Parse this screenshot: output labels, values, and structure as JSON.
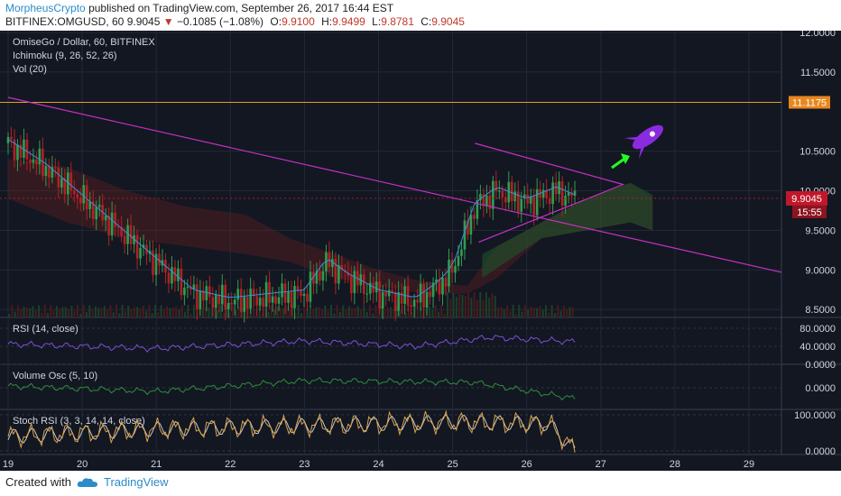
{
  "header": {
    "author": "MorpheusCrypto",
    "published": "published on TradingView.com, September 26, 2017 16:44 EST",
    "symbol": "BITFINEX:OMGUSD, 60",
    "last": "9.9045",
    "change_arrow": "▼",
    "change": "−0.1085 (−1.08%)",
    "open_label": "O:",
    "open": "9.9100",
    "high_label": "H:",
    "high": "9.9499",
    "low_label": "L:",
    "low": "9.8781",
    "close_label": "C:",
    "close": "9.9045"
  },
  "footer": {
    "created_with": "Created with",
    "brand": "TradingView",
    "logo_icon": "cloud-logo-icon"
  },
  "colors": {
    "background": "#131722",
    "grid": "#232836",
    "text": "#d1d4dc",
    "up": "#2e9f4e",
    "down": "#b32025",
    "trendline": "#c531c5",
    "level": "#e0a020",
    "rocket": "#8b2be0",
    "arrow": "#22ff22",
    "rsi": "#7b4fd6",
    "volosc": "#2f8f3a",
    "stoch_k": "#d9a34a",
    "stoch_d": "#c9c9c9"
  },
  "chart_data": [
    {
      "type": "candlestick",
      "title": "OmiseGo / Dollar, 60, BITFINEX",
      "indicators": [
        "Ichimoku (9, 26, 52, 26)",
        "Vol (20)"
      ],
      "x_tick_labels": [
        "19",
        "20",
        "21",
        "22",
        "23",
        "24",
        "25",
        "26",
        "27",
        "28",
        "29"
      ],
      "y_tick_labels": [
        "12.0000",
        "11.5000",
        "11.1175",
        "10.5000",
        "10.0000",
        "9.5000",
        "9.0000",
        "8.5000"
      ],
      "ylim": [
        8.4,
        12.0
      ],
      "horizontal_level": 11.1175,
      "last_price": "9.9045",
      "countdown": "15:55",
      "approx_close_by_day": [
        {
          "day": 19.0,
          "close": 10.6
        },
        {
          "day": 19.5,
          "close": 10.3
        },
        {
          "day": 20.0,
          "close": 9.9
        },
        {
          "day": 20.5,
          "close": 9.5
        },
        {
          "day": 21.0,
          "close": 9.1
        },
        {
          "day": 21.5,
          "close": 8.7
        },
        {
          "day": 22.0,
          "close": 8.6
        },
        {
          "day": 22.5,
          "close": 8.65
        },
        {
          "day": 23.0,
          "close": 8.7
        },
        {
          "day": 23.3,
          "close": 9.1
        },
        {
          "day": 23.6,
          "close": 8.9
        },
        {
          "day": 24.0,
          "close": 8.7
        },
        {
          "day": 24.5,
          "close": 8.6
        },
        {
          "day": 24.8,
          "close": 8.8
        },
        {
          "day": 25.0,
          "close": 9.0
        },
        {
          "day": 25.3,
          "close": 9.8
        },
        {
          "day": 25.6,
          "close": 10.0
        },
        {
          "day": 26.0,
          "close": 9.85
        },
        {
          "day": 26.4,
          "close": 10.0
        },
        {
          "day": 26.65,
          "close": 9.9
        }
      ],
      "annotations": [
        "descending trendline",
        "symmetrical triangle",
        "green arrow",
        "rocket"
      ]
    },
    {
      "type": "line",
      "title": "RSI (14, close)",
      "y_tick_labels": [
        "80.0000",
        "40.0000",
        "0.0000"
      ],
      "ylim": [
        0,
        100
      ],
      "approx_values": [
        {
          "day": 19.0,
          "v": 45
        },
        {
          "day": 21.0,
          "v": 35
        },
        {
          "day": 23.0,
          "v": 52
        },
        {
          "day": 24.5,
          "v": 40
        },
        {
          "day": 25.5,
          "v": 60
        },
        {
          "day": 26.65,
          "v": 50
        }
      ]
    },
    {
      "type": "line",
      "title": "Volume Osc (5, 10)",
      "y_tick_labels": [
        "0.0000"
      ],
      "ylim": [
        -60,
        60
      ],
      "approx_values": [
        {
          "day": 19.0,
          "v": 5
        },
        {
          "day": 21.0,
          "v": -10
        },
        {
          "day": 23.0,
          "v": 20
        },
        {
          "day": 25.3,
          "v": 15
        },
        {
          "day": 26.65,
          "v": -30
        }
      ]
    },
    {
      "type": "line",
      "title": "Stoch RSI (3, 3, 14, 14, close)",
      "y_tick_labels": [
        "100.0000",
        "0.0000"
      ],
      "ylim": [
        -10,
        110
      ],
      "approx_values": [
        {
          "day": 19.0,
          "v": 40
        },
        {
          "day": 21.0,
          "v": 60
        },
        {
          "day": 23.0,
          "v": 70
        },
        {
          "day": 25.0,
          "v": 80
        },
        {
          "day": 26.3,
          "v": 75
        },
        {
          "day": 26.65,
          "v": 0
        }
      ]
    }
  ]
}
